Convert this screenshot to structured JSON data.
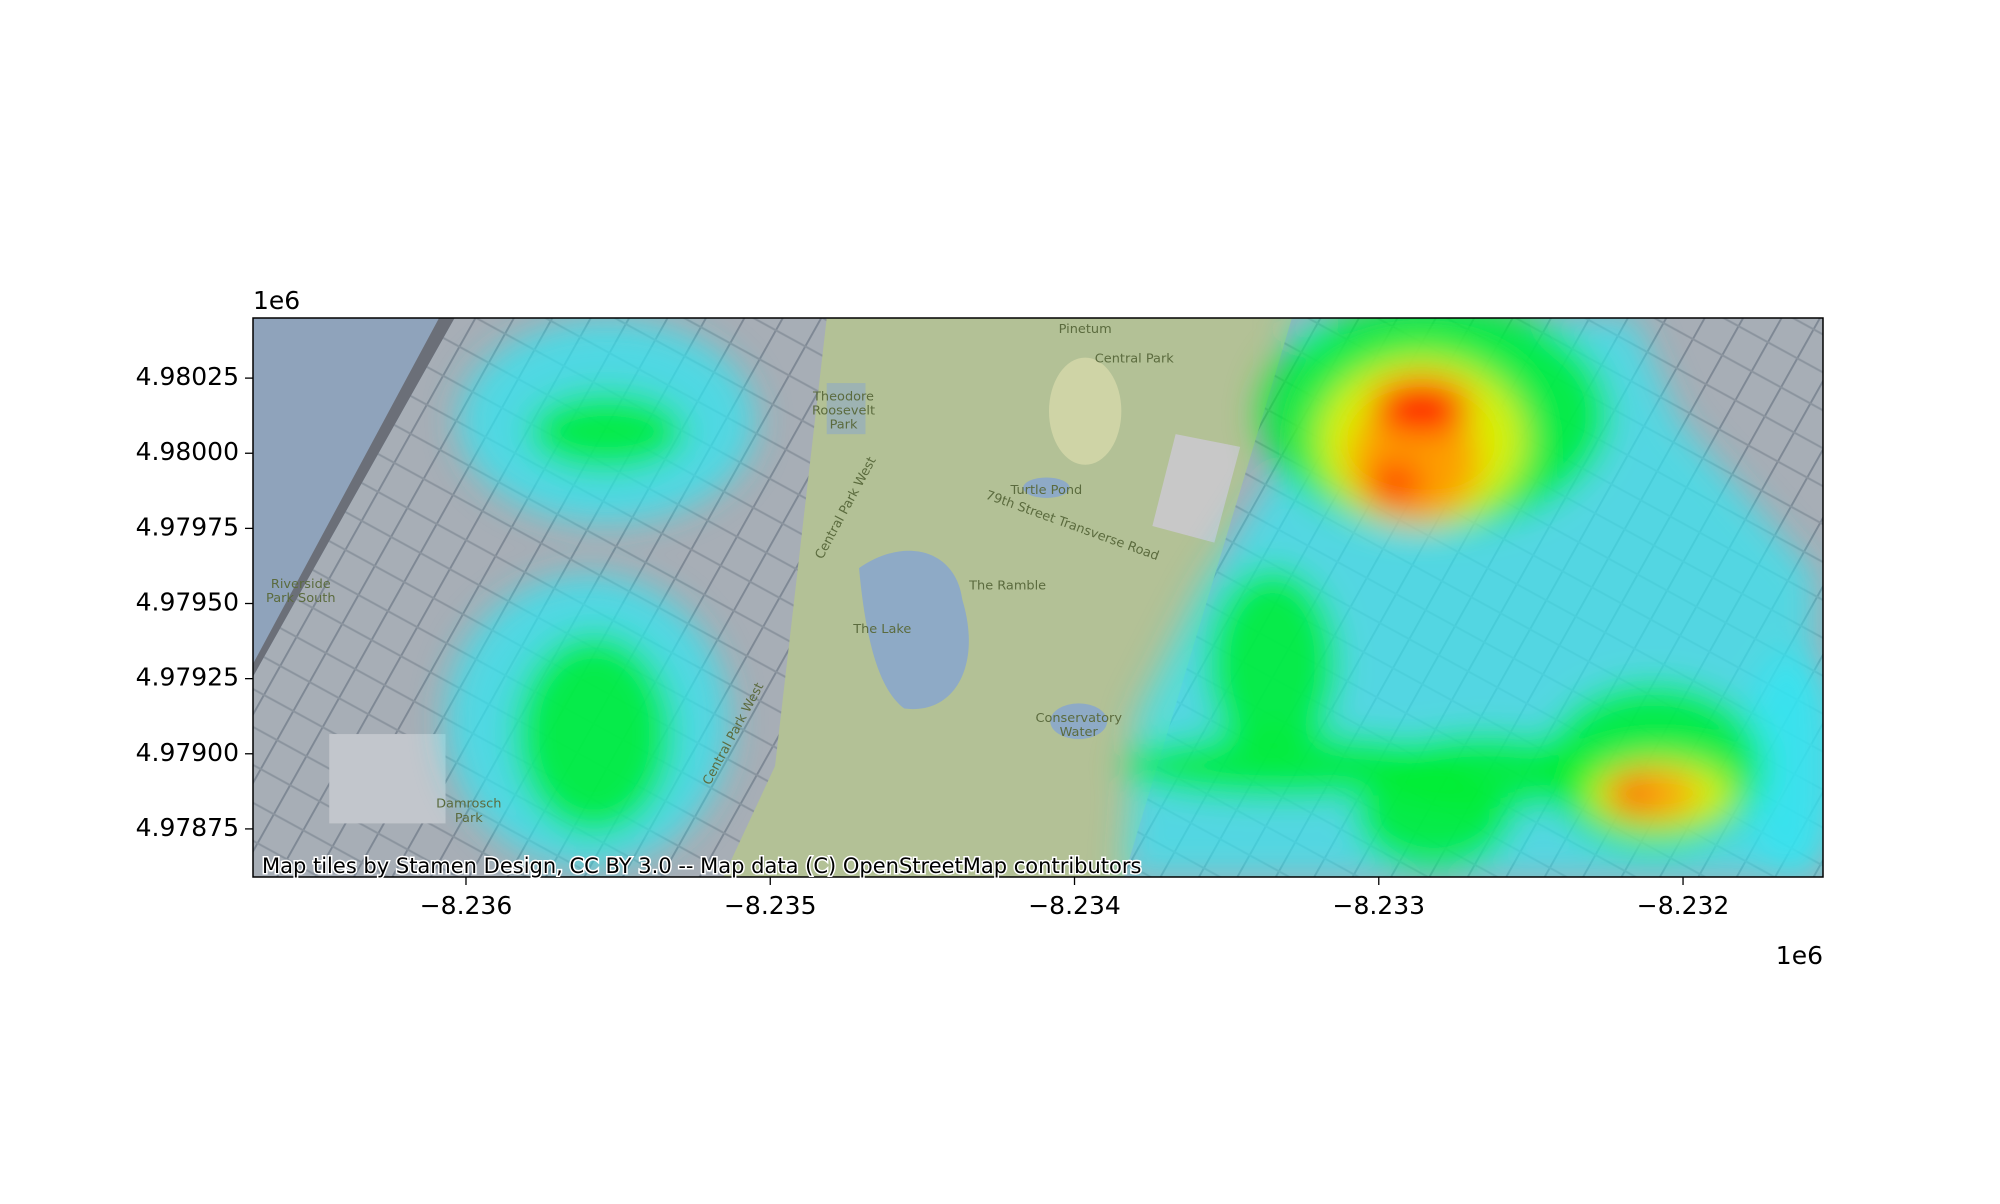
{
  "chart_data": {
    "type": "heatmap",
    "xlim": [
      -8.2367,
      -8.23154
    ],
    "ylim": [
      4.97859,
      4.98045
    ],
    "xticks": [
      {
        "value": -8.236,
        "label": "−8.236"
      },
      {
        "value": -8.235,
        "label": "−8.235"
      },
      {
        "value": -8.234,
        "label": "−8.234"
      },
      {
        "value": -8.233,
        "label": "−8.233"
      },
      {
        "value": -8.232,
        "label": "−8.232"
      }
    ],
    "yticks": [
      4.98025,
      {
        "value": 4.98,
        "label": "4.98000"
      },
      4.97975,
      {
        "value": 4.9795,
        "label": "4.97950"
      },
      4.97925,
      {
        "value": 4.979,
        "label": "4.97900"
      },
      4.97875
    ],
    "x_offset_label": "1e6",
    "y_offset_label": "1e6",
    "attribution": "Map tiles by Stamen Design, CC BY 3.0 -- Map data (C) OpenStreetMap contributors",
    "map_labels": [
      {
        "lines": [
          "Pinetum"
        ]
      },
      {
        "lines": [
          "Central Park"
        ]
      },
      {
        "lines": [
          "Theodore",
          "Roosevelt",
          "Park"
        ]
      },
      {
        "lines": [
          "Turtle Pond"
        ]
      },
      {
        "lines": [
          "79th Street Transverse Road"
        ]
      },
      {
        "lines": [
          "The Ramble"
        ]
      },
      {
        "lines": [
          "The Lake"
        ]
      },
      {
        "lines": [
          "Conservatory",
          "Water"
        ]
      },
      {
        "lines": [
          "Riverside",
          "Park South"
        ]
      },
      {
        "lines": [
          "Damrosch",
          "Park"
        ]
      },
      {
        "lines": [
          "Central Park West"
        ]
      },
      {
        "lines": [
          "Central Park West"
        ]
      }
    ]
  }
}
